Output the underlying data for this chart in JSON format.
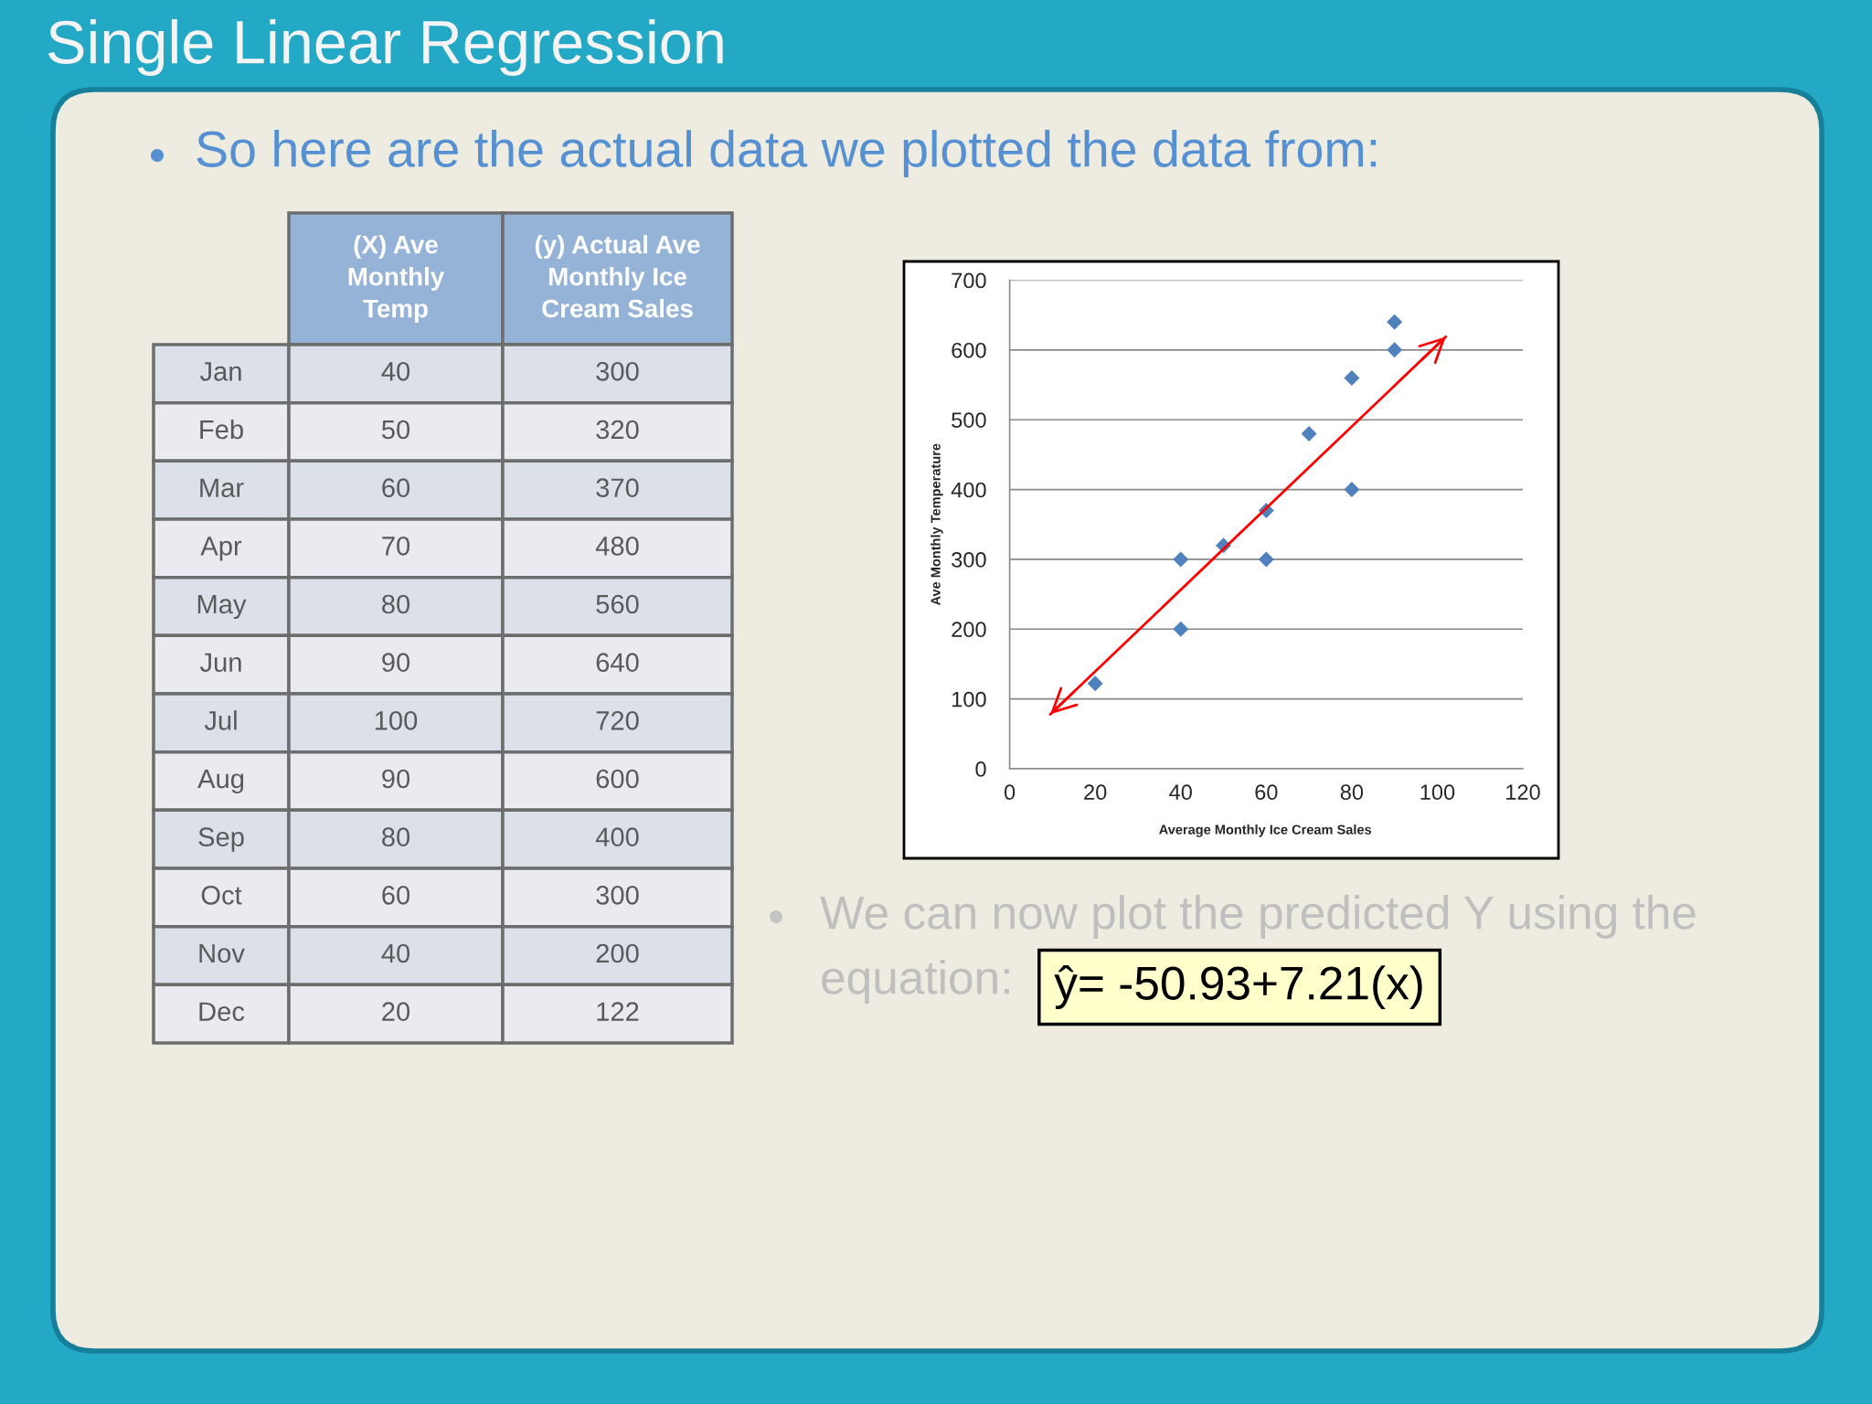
{
  "chart_data": [
    {
      "type": "other",
      "title": "Single Linear Regression",
      "subtitle": "So here are the actual data we plotted the data from:",
      "categories": [
        "Jan",
        "Feb",
        "Mar",
        "Apr",
        "May",
        "Jun",
        "Jul",
        "Aug",
        "Sep",
        "Oct",
        "Nov",
        "Dec"
      ],
      "series": [
        {
          "name": "(X) Ave Monthly Temp",
          "values": [
            40,
            50,
            60,
            70,
            80,
            90,
            100,
            90,
            80,
            60,
            40,
            20
          ],
          "colors": [
            "#dce0e9",
            "#e9ebf0",
            "#dce0e9",
            "#e9ebf0",
            "#dce0e9",
            "#e9ebf0",
            "#dce0e9",
            "#e9ebf0",
            "#dce0e9",
            "#e9ebf0",
            "#dce0e9",
            "#e9ebf0"
          ]
        },
        {
          "name": "(y) Actual Ave Monthly Ice Cream Sales",
          "values": [
            300,
            320,
            370,
            480,
            560,
            640,
            720,
            600,
            400,
            300,
            200,
            122
          ],
          "colors": [
            "#dce0e9",
            "#e9ebf0",
            "#dce0e9",
            "#e9ebf0",
            "#dce0e9",
            "#e9ebf0",
            "#dce0e9",
            "#e9ebf0",
            "#dce0e9",
            "#e9ebf0",
            "#dce0e9",
            "#e9ebf0"
          ]
        }
      ],
      "data_labels": true
    },
    {
      "type": "scatter",
      "xlabel": "Average Monthly Ice Cream Sales",
      "ylabel": "Ave Monthly Temperature",
      "xlim": [
        0,
        120
      ],
      "xticks": [
        0,
        20,
        40,
        60,
        80,
        100,
        120
      ],
      "ylim": [
        0,
        700
      ],
      "yticks": [
        0,
        100,
        200,
        300,
        400,
        500,
        600,
        700
      ],
      "grid": "y",
      "series": [
        {
          "color": "#4f81bd",
          "marker": "diamond",
          "x": [
            40,
            50,
            60,
            70,
            80,
            90,
            90,
            80,
            60,
            40,
            20
          ],
          "values": [
            300,
            320,
            370,
            480,
            560,
            640,
            600,
            400,
            300,
            200,
            122
          ]
        },
        {
          "type": "line",
          "color": "#ff0000",
          "marker": "none",
          "x": [
            9.5,
            102
          ],
          "values": [
            78,
            619
          ]
        }
      ],
      "annotations": [
        "We can now plot the predicted Y using the equation:",
        "ŷ= -50.93+7.21(x)"
      ]
    }
  ]
}
